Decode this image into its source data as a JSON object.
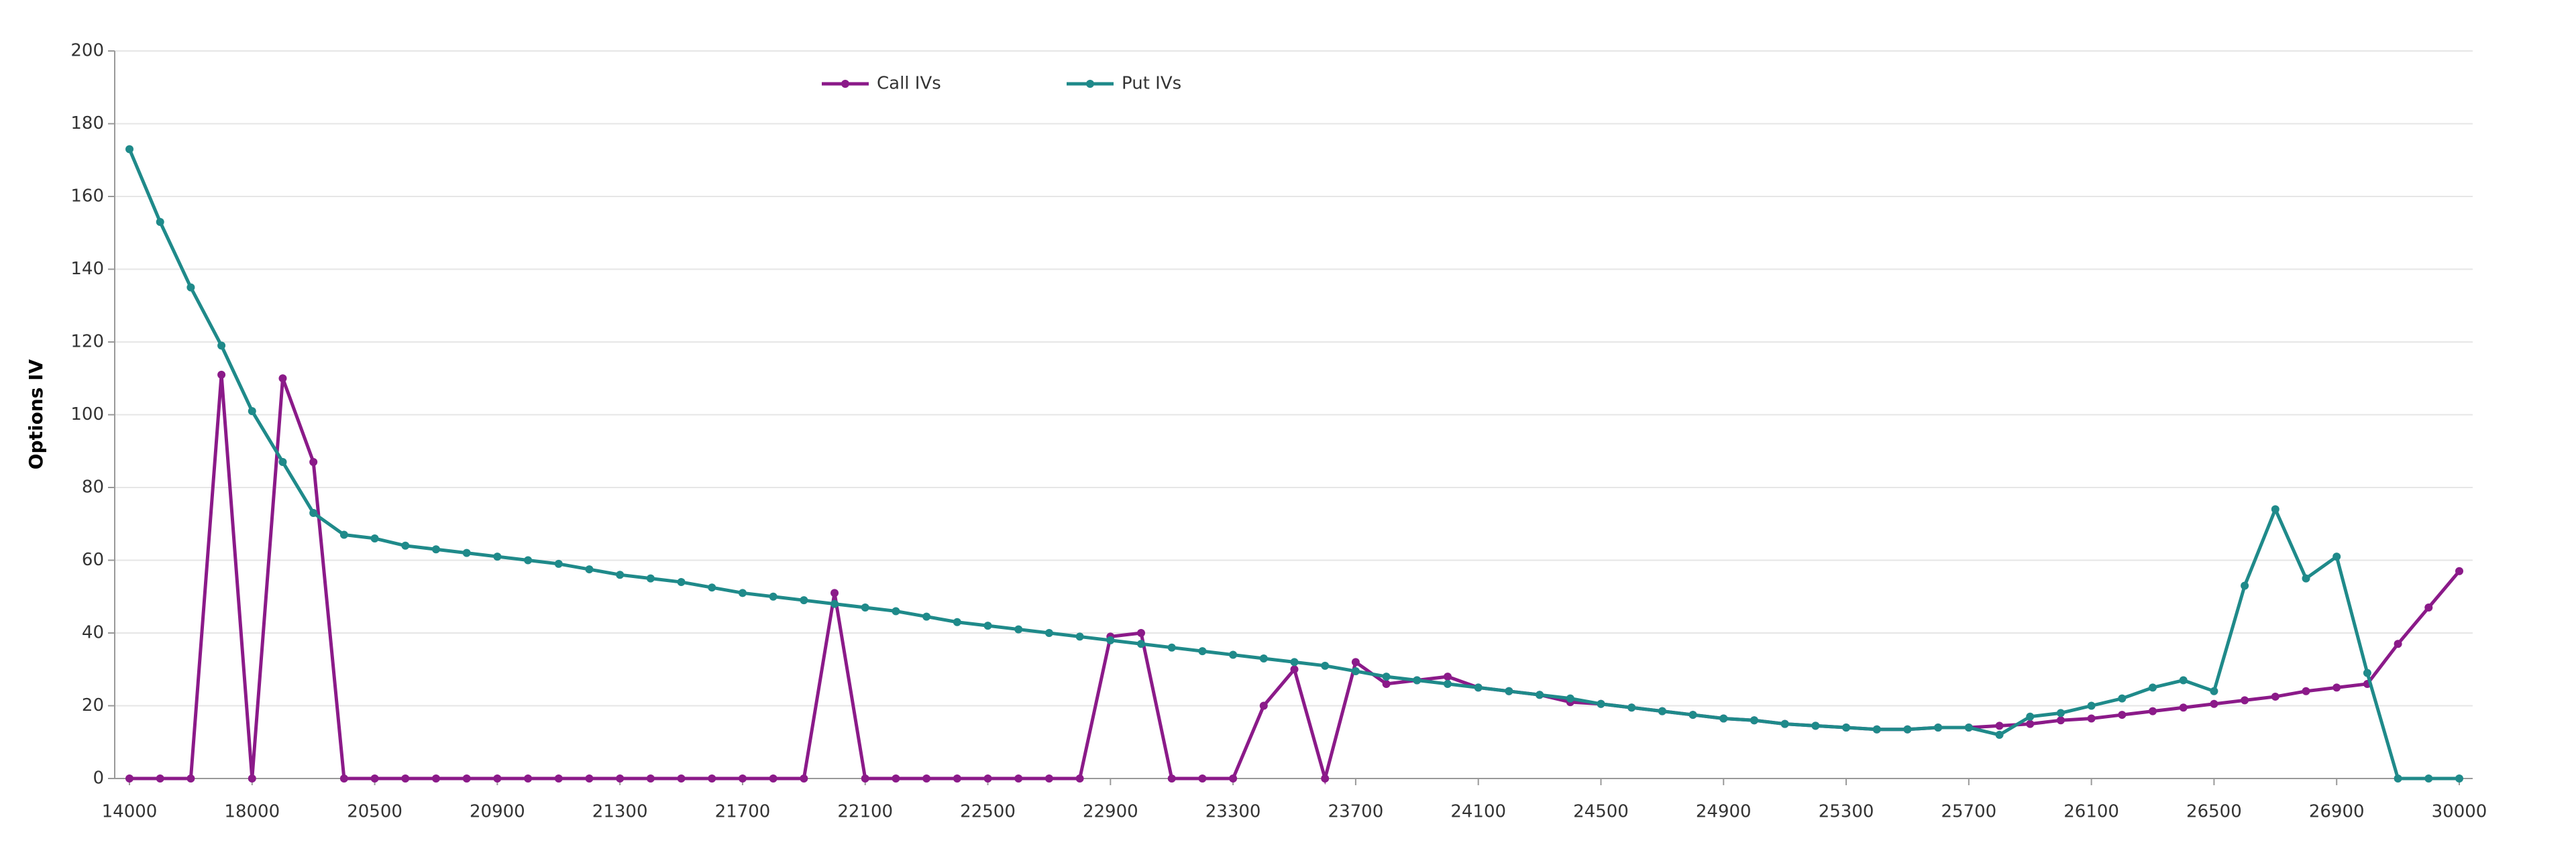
{
  "chart_data": {
    "type": "line",
    "y_label": "Options IV",
    "categories": [
      14000,
      null,
      null,
      null,
      18000,
      null,
      null,
      null,
      20500,
      null,
      null,
      null,
      20900,
      null,
      null,
      null,
      21300,
      null,
      null,
      null,
      21700,
      null,
      null,
      null,
      22100,
      null,
      null,
      null,
      22500,
      null,
      null,
      null,
      22900,
      null,
      null,
      null,
      23300,
      null,
      null,
      null,
      23700,
      null,
      null,
      null,
      24100,
      null,
      null,
      null,
      24500,
      null,
      null,
      null,
      24900,
      null,
      null,
      null,
      25300,
      null,
      null,
      null,
      25700,
      null,
      null,
      null,
      26100,
      null,
      null,
      null,
      26500,
      null,
      null,
      null,
      26900,
      null,
      null,
      null,
      30000
    ],
    "series": [
      {
        "name": "Call IVs",
        "color": "#8b1a89",
        "values": [
          0,
          0,
          0,
          111,
          0,
          110,
          87,
          0,
          0,
          0,
          0,
          0,
          0,
          0,
          0,
          0,
          0,
          0,
          0,
          0,
          0,
          0,
          0,
          51,
          0,
          0,
          0,
          0,
          0,
          0,
          0,
          0,
          39,
          40,
          0,
          0,
          0,
          20,
          30,
          0,
          32,
          26,
          27,
          28,
          25,
          24,
          23,
          21,
          20.5,
          19.5,
          18.5,
          17.5,
          16.5,
          16,
          15,
          14.5,
          14,
          13.5,
          13.5,
          14,
          14,
          14.5,
          15,
          16,
          16.5,
          17.5,
          18.5,
          19.5,
          20.5,
          21.5,
          22.5,
          24,
          25,
          26,
          37,
          47,
          57
        ]
      },
      {
        "name": "Put IVs",
        "color": "#1f8a8a",
        "values": [
          173,
          153,
          135,
          119,
          101,
          87,
          73,
          67,
          66,
          64,
          63,
          62,
          61,
          60,
          59,
          57.5,
          56,
          55,
          54,
          52.5,
          51,
          50,
          49,
          48,
          47,
          46,
          44.5,
          43,
          42,
          41,
          40,
          39,
          38,
          37,
          36,
          35,
          34,
          33,
          32,
          31,
          29.5,
          28,
          27,
          26,
          25,
          24,
          23,
          22,
          20.5,
          19.5,
          18.5,
          17.5,
          16.5,
          16,
          15,
          14.5,
          14,
          13.5,
          13.5,
          14,
          14,
          12,
          17,
          18,
          20,
          22,
          25,
          27,
          24,
          53,
          74,
          55,
          61,
          29,
          0,
          0,
          0
        ]
      }
    ],
    "ylim": [
      0,
      200
    ],
    "yticks": [
      0,
      20,
      40,
      60,
      80,
      100,
      120,
      140,
      160,
      180,
      200
    ],
    "grid": true,
    "legend": "top"
  }
}
